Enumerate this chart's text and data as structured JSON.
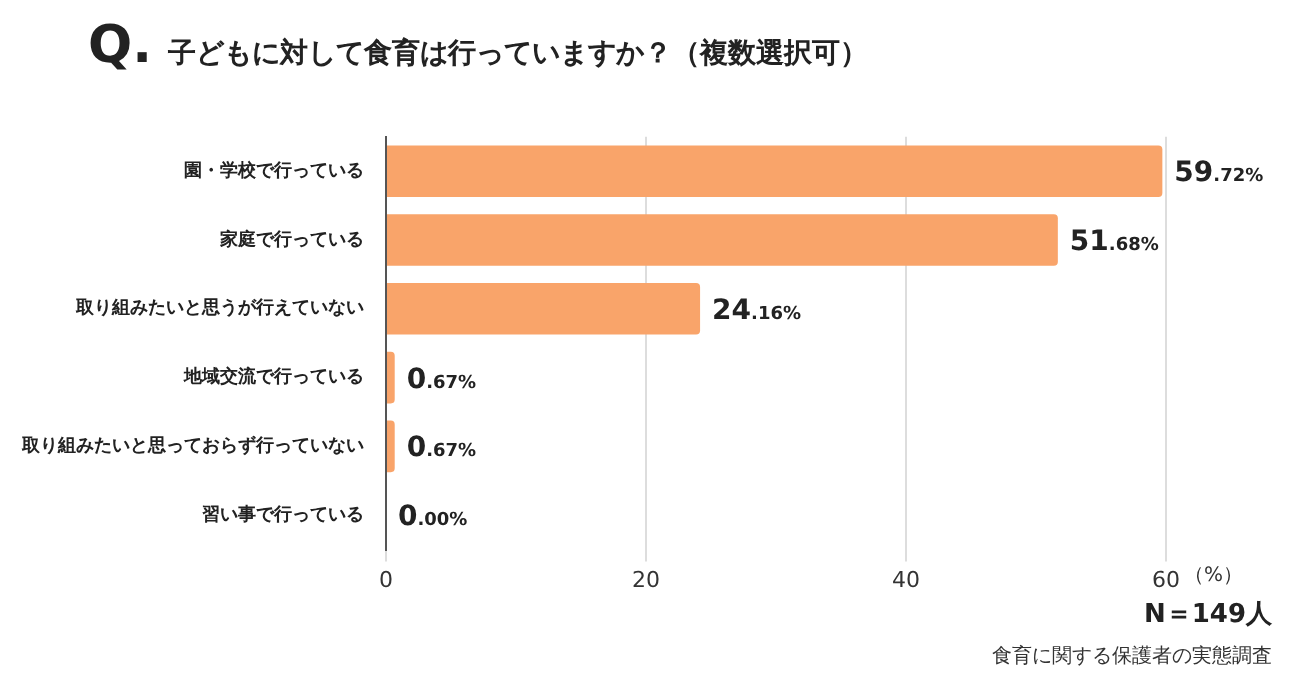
{
  "chart_data": {
    "type": "bar",
    "orientation": "horizontal",
    "title": "子どもに対して食育は行っていますか？（複数選択可）",
    "xlabel": "（%）",
    "categories": [
      "園・学校で行っている",
      "家庭で行っている",
      "取り組みたいと思うが行えていない",
      "地域交流で行っている",
      "取り組みたいと思っておらず行っていない",
      "習い事で行っている"
    ],
    "values": [
      59.72,
      51.68,
      24.16,
      0.67,
      0.67,
      0.0
    ],
    "value_labels": [
      "59.72%",
      "51.68%",
      "24.16%",
      "0.67%",
      "0.67%",
      "0.00%"
    ],
    "color": "#f9a46a",
    "xlim": [
      0,
      60
    ],
    "xticks": [
      0,
      20,
      40,
      60
    ],
    "grid": "x",
    "legend": false,
    "annotations": [
      "Q.",
      "N＝149人",
      "食育に関する保護者の実態調査"
    ]
  }
}
